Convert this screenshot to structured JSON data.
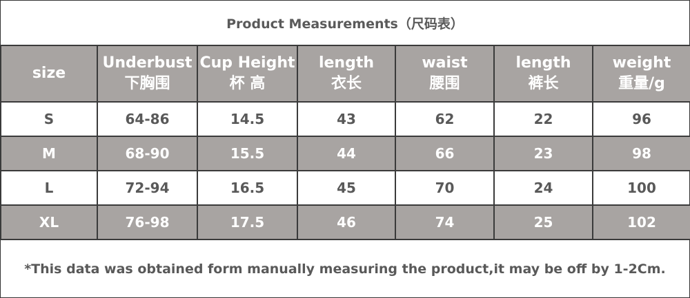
{
  "title": "Product Measurements（尺码表）",
  "header": [
    {
      "en": "size",
      "zh": ""
    },
    {
      "en": "Underbust",
      "zh": "下胸围"
    },
    {
      "en": "Cup Height",
      "zh": "杯 高"
    },
    {
      "en": "length",
      "zh": "衣长"
    },
    {
      "en": "waist",
      "zh": "腰围"
    },
    {
      "en": "length",
      "zh": "裤长"
    },
    {
      "en": "weight",
      "zh": "重量/g"
    }
  ],
  "rows": [
    [
      "S",
      "64-86",
      "14.5",
      "43",
      "62",
      "22",
      "96"
    ],
    [
      "M",
      "68-90",
      "15.5",
      "44",
      "66",
      "23",
      "98"
    ],
    [
      "L",
      "72-94",
      "16.5",
      "45",
      "70",
      "24",
      "100"
    ],
    [
      "XL",
      "76-98",
      "17.5",
      "46",
      "74",
      "25",
      "102"
    ]
  ],
  "note": "*This data was obtained form manually measuring the product,it may be off by 1-2Cm.",
  "colors": {
    "header_bg": "#a8a4a2",
    "text": "#595959"
  }
}
